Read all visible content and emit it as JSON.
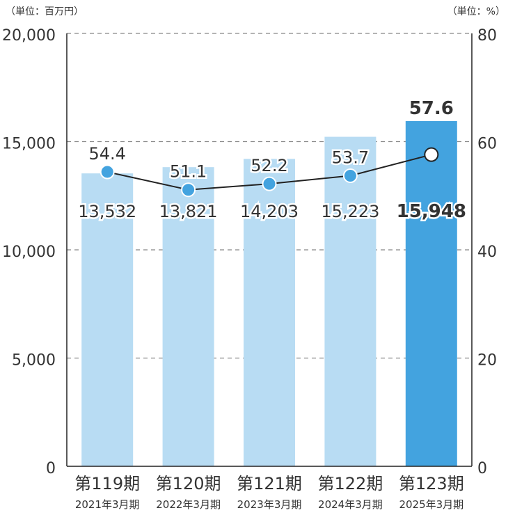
{
  "chart_data": {
    "type": "bar",
    "left_axis_unit": "（単位：百万円）",
    "right_axis_unit": "（単位：%）",
    "categories": [
      {
        "label": "第119期",
        "sublabel": "2021年3月期"
      },
      {
        "label": "第120期",
        "sublabel": "2022年3月期"
      },
      {
        "label": "第121期",
        "sublabel": "2023年3月期"
      },
      {
        "label": "第122期",
        "sublabel": "2024年3月期"
      },
      {
        "label": "第123期",
        "sublabel": "2025年3月期"
      }
    ],
    "series": [
      {
        "type": "bar",
        "axis": "left",
        "values": [
          13532,
          13821,
          14203,
          15223,
          15948
        ],
        "data_labels": [
          "13,532",
          "13,821",
          "14,203",
          "15,223",
          "15,948"
        ],
        "highlight_index": 4
      },
      {
        "type": "line",
        "axis": "right",
        "values": [
          54.4,
          51.1,
          52.2,
          53.7,
          57.6
        ],
        "data_labels": [
          "54.4",
          "51.1",
          "52.2",
          "53.7",
          "57.6"
        ],
        "highlight_index": 4
      }
    ],
    "left_axis": {
      "range": [
        0,
        20000
      ],
      "ticks": [
        "0",
        "5,000",
        "10,000",
        "15,000",
        "20,000"
      ],
      "tick_values": [
        0,
        5000,
        10000,
        15000,
        20000
      ]
    },
    "right_axis": {
      "range": [
        0,
        80
      ],
      "ticks": [
        "0",
        "20",
        "40",
        "60",
        "80"
      ],
      "tick_values": [
        0,
        20,
        40,
        60,
        80
      ]
    },
    "grid": true,
    "colors": {
      "bar": "#b8dcf3",
      "bar_highlight": "#43a3df",
      "marker": "#43a3df",
      "line": "#222222",
      "grid": "#888888",
      "text": "#333333"
    }
  }
}
